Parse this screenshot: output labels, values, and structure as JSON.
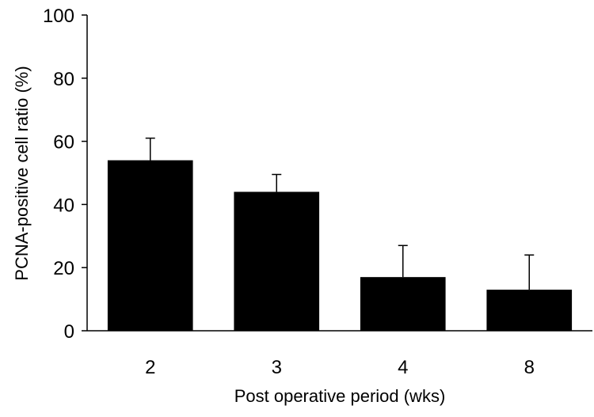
{
  "chart_data": {
    "type": "bar",
    "title": "",
    "xlabel": "Post operative period (wks)",
    "ylabel": "PCNA-positive cell ratio (%)",
    "categories": [
      "2",
      "3",
      "4",
      "8"
    ],
    "values": [
      54,
      44,
      17,
      13
    ],
    "error_upper": [
      61,
      49.5,
      27,
      24
    ],
    "ylim": [
      0,
      100
    ],
    "yticks": [
      "0",
      "20",
      "40",
      "60",
      "80",
      "100"
    ],
    "grid": false,
    "legend": "none",
    "bar_color": "#000000",
    "axis_color": "#000000"
  }
}
